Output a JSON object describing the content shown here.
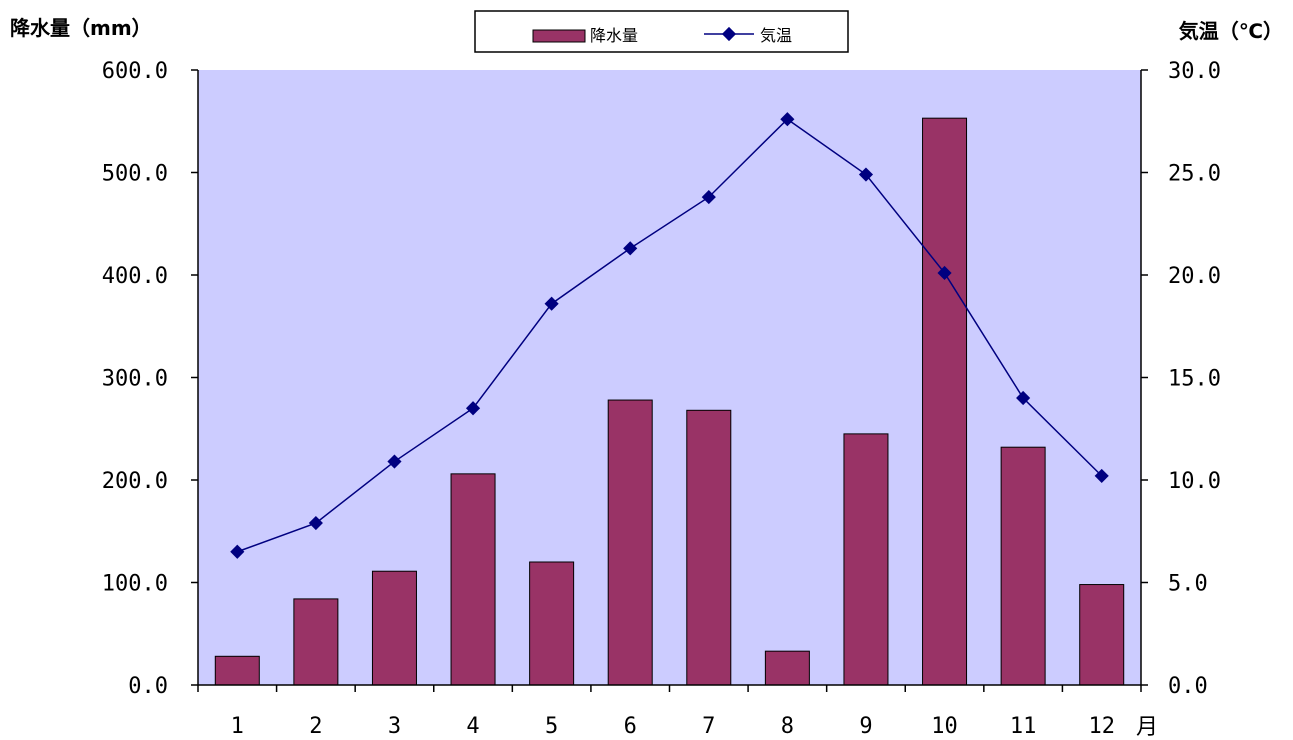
{
  "chart_data": {
    "type": "bar",
    "categories": [
      "1",
      "2",
      "3",
      "4",
      "5",
      "6",
      "7",
      "8",
      "9",
      "10",
      "11",
      "12"
    ],
    "xlabel": "月",
    "series": [
      {
        "name": "降水量",
        "type": "bar",
        "axis": "left",
        "color": "#993366",
        "values": [
          28.0,
          84.0,
          111.0,
          206.0,
          120.0,
          278.0,
          268.0,
          33.0,
          245.0,
          553.0,
          232.0,
          98.0
        ]
      },
      {
        "name": "気温",
        "type": "line",
        "axis": "right",
        "color": "#000080",
        "values": [
          6.5,
          7.9,
          10.9,
          13.5,
          18.6,
          21.3,
          23.8,
          27.6,
          24.9,
          20.1,
          14.0,
          10.2
        ]
      }
    ],
    "left_axis": {
      "label": "降水量（mm）",
      "min": 0,
      "max": 600,
      "ticks": [
        "0.0",
        "100.0",
        "200.0",
        "300.0",
        "400.0",
        "500.0",
        "600.0"
      ]
    },
    "right_axis": {
      "label": "気温（℃）",
      "min": 0,
      "max": 30,
      "ticks": [
        "0.0",
        "5.0",
        "10.0",
        "15.0",
        "20.0",
        "25.0",
        "30.0"
      ]
    },
    "plot_background": "#ccccff",
    "grid": false,
    "legend_position": "top-center"
  }
}
